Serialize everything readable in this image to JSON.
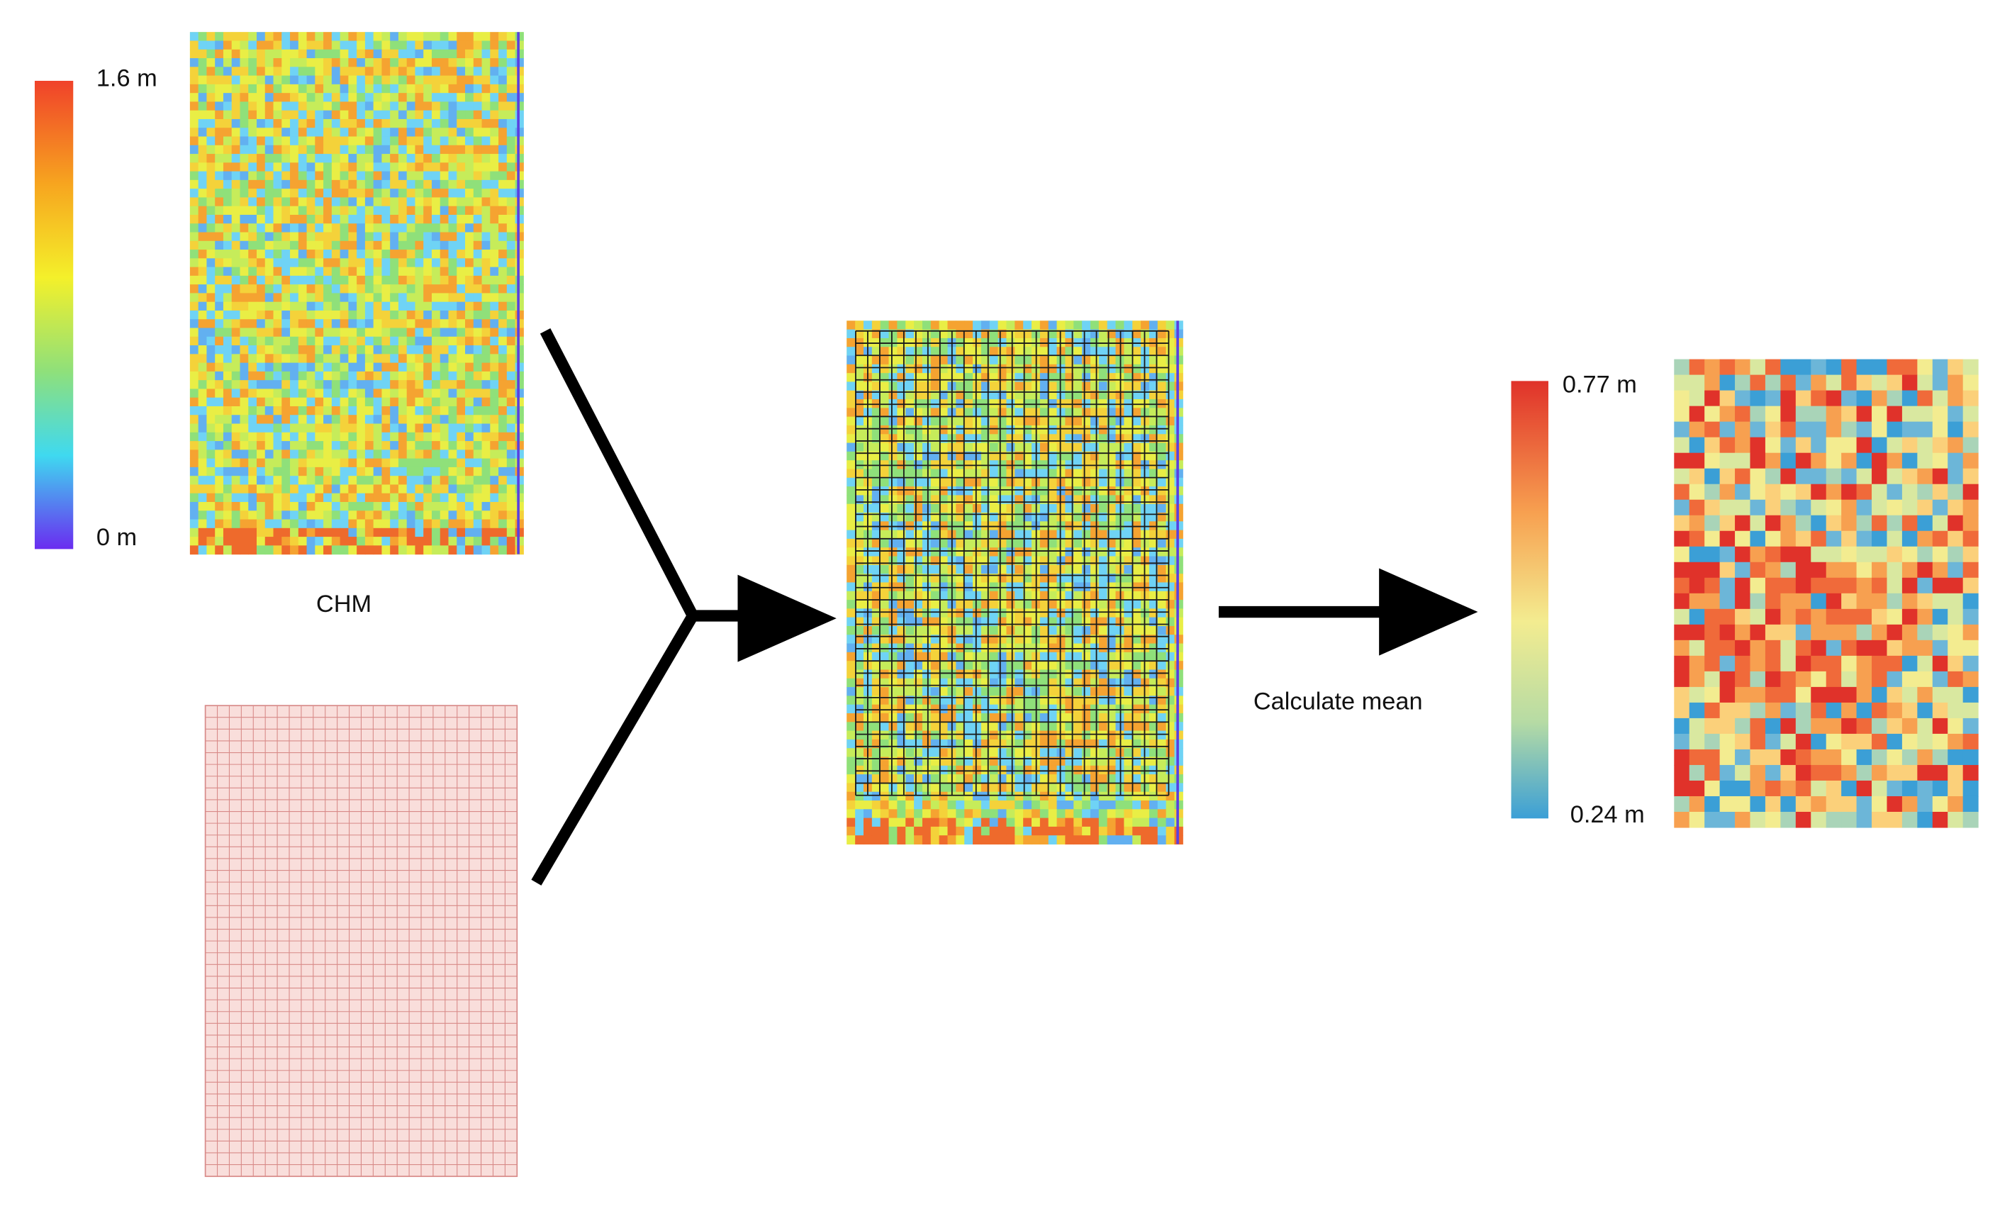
{
  "chm_colorbar": {
    "max_label": "1.6 m",
    "min_label": "0 m"
  },
  "chm_caption": "CHM",
  "step_label": "Calculate mean",
  "mean_colorbar": {
    "max_label": "0.77 m",
    "min_label": "0.24 m"
  }
}
